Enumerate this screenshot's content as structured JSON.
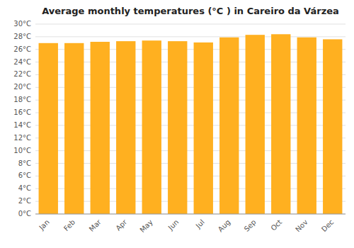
{
  "chart_data": {
    "type": "bar",
    "title": "Average monthly temperatures (°C ) in Careiro da Várzea",
    "categories": [
      "Jan",
      "Feb",
      "Mar",
      "Apr",
      "May",
      "Jun",
      "Jul",
      "Aug",
      "Sep",
      "Oct",
      "Nov",
      "Dec"
    ],
    "values": [
      27.0,
      27.0,
      27.2,
      27.3,
      27.4,
      27.3,
      27.1,
      27.9,
      28.3,
      28.4,
      27.9,
      27.6
    ],
    "color": "#FFB020",
    "ylim": [
      0,
      30
    ],
    "yticks": [
      {
        "value": 0,
        "label": "0°C"
      },
      {
        "value": 2,
        "label": "2°C"
      },
      {
        "value": 4,
        "label": "4°C"
      },
      {
        "value": 6,
        "label": "6°C"
      },
      {
        "value": 8,
        "label": "8°C"
      },
      {
        "value": 10,
        "label": "10°C"
      },
      {
        "value": 12,
        "label": "12°C"
      },
      {
        "value": 14,
        "label": "14°C"
      },
      {
        "value": 16,
        "label": "16°C"
      },
      {
        "value": 18,
        "label": "18°C"
      },
      {
        "value": 20,
        "label": "20°C"
      },
      {
        "value": 22,
        "label": "22°C"
      },
      {
        "value": 24,
        "label": "24°C"
      },
      {
        "value": 26,
        "label": "26°C"
      },
      {
        "value": 28,
        "label": "28°C"
      },
      {
        "value": 30,
        "label": "30°C"
      }
    ],
    "grid": true
  }
}
